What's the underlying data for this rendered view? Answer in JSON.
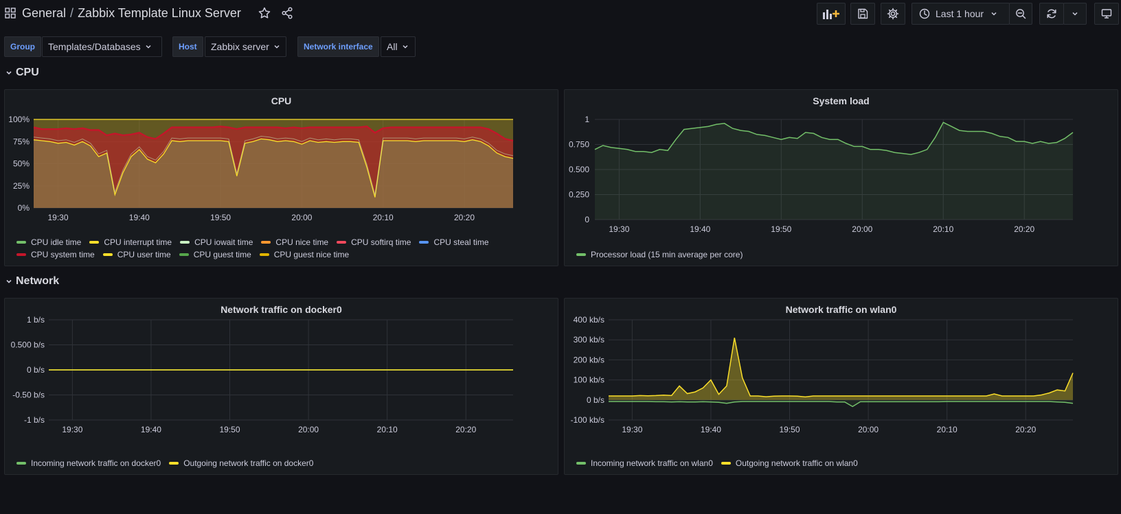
{
  "header": {
    "breadcrumb_folder": "General",
    "breadcrumb_separator": "/",
    "dashboard_title": "Zabbix Template Linux Server",
    "time_range": "Last 1 hour"
  },
  "variables": [
    {
      "label": "Group",
      "value": "Templates/Databases"
    },
    {
      "label": "Host",
      "value": "Zabbix server"
    },
    {
      "label": "Network interface",
      "value": "All"
    }
  ],
  "rows": [
    {
      "title": "CPU"
    },
    {
      "title": "Network"
    }
  ],
  "colors": {
    "background": "#111217",
    "panel": "#181b1f",
    "accent_blue": "#6e9fff",
    "green": "#73bf69",
    "yellow": "#fade2a",
    "red": "#c4162a"
  },
  "panels": {
    "cpu": {
      "title": "CPU",
      "y_ticks": [
        "100%",
        "75%",
        "50%",
        "25%",
        "0%"
      ],
      "x_ticks": [
        "19:30",
        "19:40",
        "19:50",
        "20:00",
        "20:10",
        "20:20"
      ],
      "legend": [
        {
          "label": "CPU idle time",
          "color": "#73bf69"
        },
        {
          "label": "CPU interrupt time",
          "color": "#fade2a"
        },
        {
          "label": "CPU iowait time",
          "color": "#c8f2c2"
        },
        {
          "label": "CPU nice time",
          "color": "#ff9830"
        },
        {
          "label": "CPU softirq time",
          "color": "#f2495c"
        },
        {
          "label": "CPU steal time",
          "color": "#5794f2"
        },
        {
          "label": "CPU system time",
          "color": "#c4162a"
        },
        {
          "label": "CPU user time",
          "color": "#fade2a"
        },
        {
          "label": "CPU guest time",
          "color": "#56a64b"
        },
        {
          "label": "CPU guest nice time",
          "color": "#e0b400"
        }
      ]
    },
    "sysload": {
      "title": "System load",
      "y_ticks": [
        "1",
        "0.750",
        "0.500",
        "0.250",
        "0"
      ],
      "x_ticks": [
        "19:30",
        "19:40",
        "19:50",
        "20:00",
        "20:10",
        "20:20"
      ],
      "legend": [
        {
          "label": "Processor load (15 min average per core)",
          "color": "#73bf69"
        }
      ]
    },
    "docker0": {
      "title": "Network traffic on docker0",
      "y_ticks": [
        "1 b/s",
        "0.500 b/s",
        "0 b/s",
        "-0.50 b/s",
        "-1 b/s"
      ],
      "x_ticks": [
        "19:30",
        "19:40",
        "19:50",
        "20:00",
        "20:10",
        "20:20"
      ],
      "legend": [
        {
          "label": "Incoming network traffic on docker0",
          "color": "#73bf69"
        },
        {
          "label": "Outgoing network traffic on docker0",
          "color": "#fade2a"
        }
      ]
    },
    "wlan0": {
      "title": "Network traffic on wlan0",
      "y_ticks": [
        "400 kb/s",
        "300 kb/s",
        "200 kb/s",
        "100 kb/s",
        "0 b/s",
        "-100 kb/s"
      ],
      "x_ticks": [
        "19:30",
        "19:40",
        "19:50",
        "20:00",
        "20:10",
        "20:20"
      ],
      "legend": [
        {
          "label": "Incoming network traffic on wlan0",
          "color": "#73bf69"
        },
        {
          "label": "Outgoing network traffic on wlan0",
          "color": "#fade2a"
        }
      ]
    }
  },
  "chart_data": [
    {
      "type": "area",
      "title": "CPU",
      "ylim": [
        0,
        100
      ],
      "x": [
        "19:27",
        "19:28",
        "19:29",
        "19:30",
        "19:31",
        "19:32",
        "19:33",
        "19:34",
        "19:35",
        "19:36",
        "19:37",
        "19:38",
        "19:39",
        "19:40",
        "19:41",
        "19:42",
        "19:43",
        "19:44",
        "19:45",
        "19:46",
        "19:47",
        "19:48",
        "19:49",
        "19:50",
        "19:51",
        "19:52",
        "19:53",
        "19:54",
        "19:55",
        "19:56",
        "19:57",
        "19:58",
        "19:59",
        "20:00",
        "20:01",
        "20:02",
        "20:03",
        "20:04",
        "20:05",
        "20:06",
        "20:07",
        "20:08",
        "20:09",
        "20:10",
        "20:11",
        "20:12",
        "20:13",
        "20:14",
        "20:15",
        "20:16",
        "20:17",
        "20:18",
        "20:19",
        "20:20",
        "20:21",
        "20:22",
        "20:23",
        "20:24",
        "20:25",
        "20:26"
      ],
      "series": [
        {
          "name": "CPU idle time",
          "values": [
            77,
            76,
            75,
            73,
            74,
            71,
            75,
            70,
            58,
            62,
            15,
            40,
            58,
            66,
            55,
            51,
            61,
            76,
            75,
            76,
            76,
            76,
            76,
            76,
            75,
            36,
            73,
            75,
            78,
            77,
            75,
            76,
            75,
            72,
            76,
            74,
            75,
            74,
            75,
            75,
            74,
            46,
            12,
            76,
            76,
            76,
            76,
            75,
            76,
            76,
            76,
            76,
            76,
            75,
            77,
            75,
            70,
            62,
            58,
            56
          ]
        },
        {
          "name": "CPU system time",
          "values": [
            91,
            89,
            89,
            89,
            90,
            89,
            90,
            88,
            88,
            82,
            84,
            82,
            83,
            85,
            80,
            78,
            84,
            91,
            91,
            91,
            91,
            91,
            91,
            92,
            91,
            89,
            91,
            91,
            91,
            91,
            91,
            90,
            91,
            90,
            91,
            91,
            91,
            91,
            91,
            91,
            91,
            92,
            85,
            90,
            91,
            91,
            91,
            91,
            91,
            91,
            91,
            91,
            91,
            91,
            91,
            91,
            89,
            84,
            78,
            76
          ]
        },
        {
          "name": "CPU user time",
          "values": [
            100,
            100,
            100,
            100,
            100,
            100,
            100,
            100,
            100,
            100,
            100,
            100,
            100,
            100,
            100,
            100,
            100,
            100,
            100,
            100,
            100,
            100,
            100,
            100,
            100,
            100,
            100,
            100,
            100,
            100,
            100,
            100,
            100,
            100,
            100,
            100,
            100,
            100,
            100,
            100,
            100,
            100,
            100,
            100,
            100,
            100,
            100,
            100,
            100,
            100,
            100,
            100,
            100,
            100,
            100,
            100,
            100,
            100,
            100,
            100
          ]
        }
      ]
    },
    {
      "type": "line",
      "title": "System load",
      "ylim": [
        0,
        1
      ],
      "x": [
        "19:27",
        "19:28",
        "19:29",
        "19:30",
        "19:31",
        "19:32",
        "19:33",
        "19:34",
        "19:35",
        "19:36",
        "19:37",
        "19:38",
        "19:39",
        "19:40",
        "19:41",
        "19:42",
        "19:43",
        "19:44",
        "19:45",
        "19:46",
        "19:47",
        "19:48",
        "19:49",
        "19:50",
        "19:51",
        "19:52",
        "19:53",
        "19:54",
        "19:55",
        "19:56",
        "19:57",
        "19:58",
        "19:59",
        "20:00",
        "20:01",
        "20:02",
        "20:03",
        "20:04",
        "20:05",
        "20:06",
        "20:07",
        "20:08",
        "20:09",
        "20:10",
        "20:11",
        "20:12",
        "20:13",
        "20:14",
        "20:15",
        "20:16",
        "20:17",
        "20:18",
        "20:19",
        "20:20",
        "20:21",
        "20:22",
        "20:23",
        "20:24",
        "20:25",
        "20:26"
      ],
      "series": [
        {
          "name": "Processor load (15 min average per core)",
          "values": [
            0.7,
            0.74,
            0.72,
            0.71,
            0.7,
            0.68,
            0.68,
            0.67,
            0.7,
            0.69,
            0.8,
            0.9,
            0.91,
            0.92,
            0.93,
            0.95,
            0.96,
            0.91,
            0.89,
            0.88,
            0.85,
            0.84,
            0.82,
            0.8,
            0.82,
            0.81,
            0.87,
            0.86,
            0.82,
            0.8,
            0.8,
            0.76,
            0.73,
            0.73,
            0.7,
            0.7,
            0.69,
            0.67,
            0.66,
            0.65,
            0.67,
            0.7,
            0.82,
            0.97,
            0.93,
            0.89,
            0.88,
            0.88,
            0.88,
            0.86,
            0.83,
            0.82,
            0.78,
            0.78,
            0.76,
            0.78,
            0.76,
            0.77,
            0.81,
            0.87
          ]
        }
      ]
    },
    {
      "type": "line",
      "title": "Network traffic on docker0",
      "ylim": [
        -1,
        1
      ],
      "x": [
        "19:27",
        "20:26"
      ],
      "series": [
        {
          "name": "Incoming network traffic on docker0",
          "values": [
            0,
            0
          ]
        },
        {
          "name": "Outgoing network traffic on docker0",
          "values": [
            0,
            0
          ]
        }
      ]
    },
    {
      "type": "line",
      "title": "Network traffic on wlan0",
      "ylim": [
        -100,
        400
      ],
      "x": [
        "19:27",
        "19:28",
        "19:29",
        "19:30",
        "19:31",
        "19:32",
        "19:33",
        "19:34",
        "19:35",
        "19:36",
        "19:37",
        "19:38",
        "19:39",
        "19:40",
        "19:41",
        "19:42",
        "19:43",
        "19:44",
        "19:45",
        "19:46",
        "19:47",
        "19:48",
        "19:49",
        "19:50",
        "19:51",
        "19:52",
        "19:53",
        "19:54",
        "19:55",
        "19:56",
        "19:57",
        "19:58",
        "19:59",
        "20:00",
        "20:01",
        "20:02",
        "20:03",
        "20:04",
        "20:05",
        "20:06",
        "20:07",
        "20:08",
        "20:09",
        "20:10",
        "20:11",
        "20:12",
        "20:13",
        "20:14",
        "20:15",
        "20:16",
        "20:17",
        "20:18",
        "20:19",
        "20:20",
        "20:21",
        "20:22",
        "20:23",
        "20:24",
        "20:25",
        "20:26"
      ],
      "series": [
        {
          "name": "Incoming network traffic on wlan0",
          "values": [
            -8,
            -8,
            -8,
            -8,
            -8,
            -8,
            -9,
            -9,
            -10,
            -9,
            -10,
            -10,
            -9,
            -10,
            -12,
            -17,
            -10,
            -8,
            -8,
            -8,
            -8,
            -8,
            -8,
            -8,
            -8,
            -8,
            -8,
            -8,
            -8,
            -10,
            -10,
            -33,
            -9,
            -9,
            -9,
            -9,
            -9,
            -9,
            -9,
            -9,
            -9,
            -9,
            -9,
            -8,
            -8,
            -8,
            -8,
            -8,
            -8,
            -8,
            -8,
            -8,
            -8,
            -8,
            -8,
            -8,
            -8,
            -10,
            -12,
            -17
          ]
        },
        {
          "name": "Outgoing network traffic on wlan0",
          "values": [
            20,
            20,
            20,
            20,
            22,
            21,
            22,
            24,
            22,
            70,
            32,
            40,
            60,
            100,
            28,
            70,
            310,
            110,
            20,
            20,
            16,
            19,
            20,
            20,
            19,
            15,
            20,
            20,
            20,
            20,
            20,
            20,
            20,
            20,
            20,
            20,
            20,
            20,
            20,
            20,
            20,
            20,
            20,
            20,
            20,
            20,
            20,
            20,
            20,
            30,
            20,
            20,
            20,
            20,
            20,
            25,
            35,
            50,
            45,
            135
          ]
        }
      ]
    }
  ]
}
